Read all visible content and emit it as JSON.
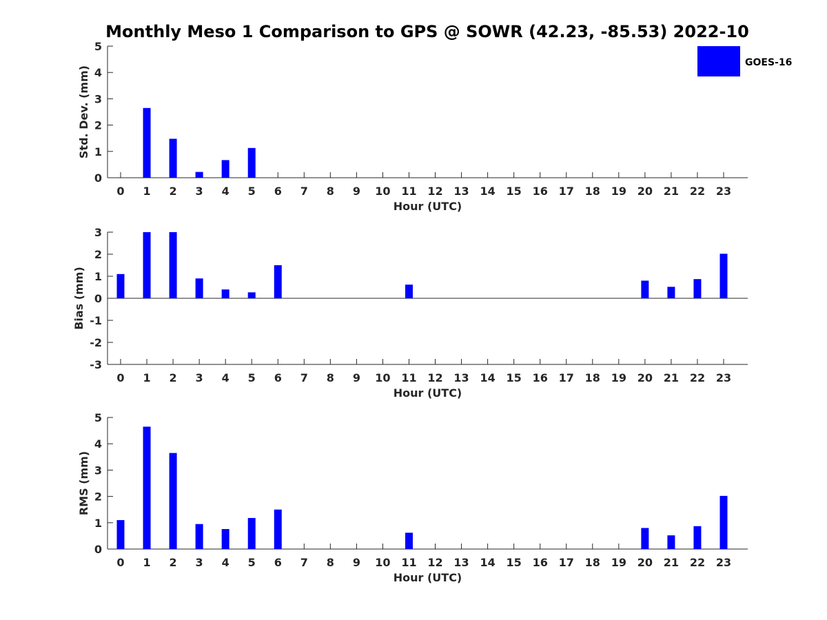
{
  "title": "Monthly Meso 1 Comparison to GPS @ SOWR (42.23, -85.53) 2022-10",
  "legend": {
    "label": "GOES-16",
    "color": "#0000ff"
  },
  "chart_data": [
    {
      "type": "bar",
      "xlabel": "Hour (UTC)",
      "ylabel": "Std. Dev. (mm)",
      "ylim": [
        0,
        5
      ],
      "yticks": [
        0,
        1,
        2,
        3,
        4,
        5
      ],
      "categories": [
        "0",
        "1",
        "2",
        "3",
        "4",
        "5",
        "6",
        "7",
        "8",
        "9",
        "10",
        "11",
        "12",
        "13",
        "14",
        "15",
        "16",
        "17",
        "18",
        "19",
        "20",
        "21",
        "22",
        "23"
      ],
      "series": [
        {
          "name": "GOES-16",
          "values": [
            0,
            2.65,
            1.48,
            0.22,
            0.67,
            1.13,
            0,
            0,
            0,
            0,
            0,
            0,
            0,
            0,
            0,
            0,
            0,
            0,
            0,
            0,
            0,
            0,
            0,
            0
          ]
        }
      ]
    },
    {
      "type": "bar",
      "xlabel": "Hour (UTC)",
      "ylabel": "Bias (mm)",
      "ylim": [
        -3,
        3
      ],
      "yticks": [
        -3,
        -2,
        -1,
        0,
        1,
        2,
        3
      ],
      "categories": [
        "0",
        "1",
        "2",
        "3",
        "4",
        "5",
        "6",
        "7",
        "8",
        "9",
        "10",
        "11",
        "12",
        "13",
        "14",
        "15",
        "16",
        "17",
        "18",
        "19",
        "20",
        "21",
        "22",
        "23"
      ],
      "series": [
        {
          "name": "GOES-16",
          "values": [
            1.1,
            3.0,
            3.0,
            0.9,
            0.4,
            0.27,
            1.5,
            0,
            0,
            0,
            0,
            0.62,
            0,
            0,
            0,
            0,
            0,
            0,
            0,
            0,
            0.8,
            0.52,
            0.87,
            2.02
          ]
        }
      ]
    },
    {
      "type": "bar",
      "xlabel": "Hour (UTC)",
      "ylabel": "RMS (mm)",
      "ylim": [
        0,
        5
      ],
      "yticks": [
        0,
        1,
        2,
        3,
        4,
        5
      ],
      "categories": [
        "0",
        "1",
        "2",
        "3",
        "4",
        "5",
        "6",
        "7",
        "8",
        "9",
        "10",
        "11",
        "12",
        "13",
        "14",
        "15",
        "16",
        "17",
        "18",
        "19",
        "20",
        "21",
        "22",
        "23"
      ],
      "series": [
        {
          "name": "GOES-16",
          "values": [
            1.1,
            4.65,
            3.65,
            0.95,
            0.76,
            1.18,
            1.5,
            0,
            0,
            0,
            0,
            0.62,
            0,
            0,
            0,
            0,
            0,
            0,
            0,
            0,
            0.8,
            0.52,
            0.87,
            2.02
          ]
        }
      ]
    }
  ]
}
